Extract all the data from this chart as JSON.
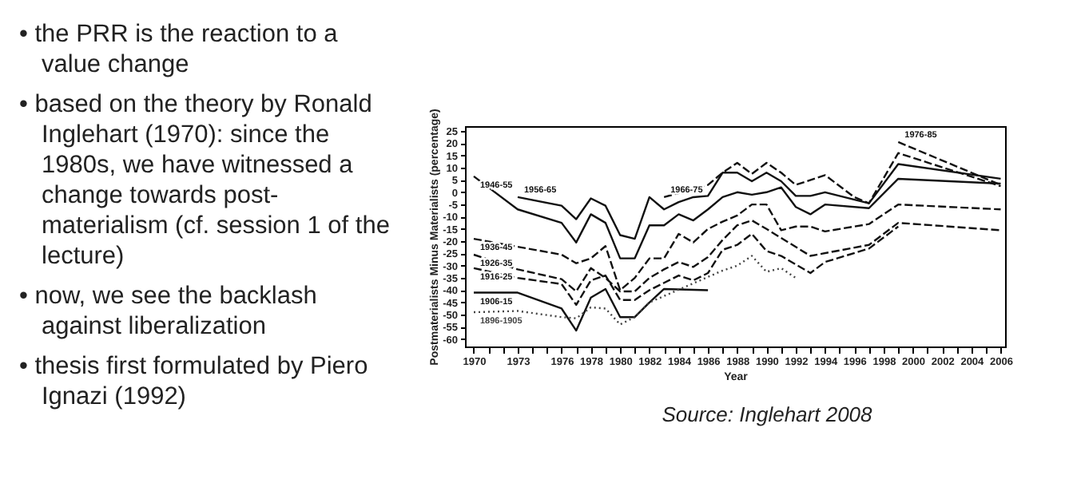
{
  "chart_data": {
    "type": "line",
    "xlabel": "Year",
    "ylabel": "Postmaterialists Minus Materialists (percentage)",
    "grid": false,
    "xlim": [
      1969.4,
      2006.3
    ],
    "ylim": [
      -63,
      27
    ],
    "xticks": [
      1970,
      {
        "value": 1971,
        "label": null
      },
      {
        "value": 1972,
        "label": null
      },
      1973,
      {
        "value": 1974,
        "label": null
      },
      {
        "value": 1975,
        "label": null
      },
      1976,
      {
        "value": 1977,
        "label": null
      },
      1978,
      {
        "value": 1979,
        "label": null
      },
      1980,
      {
        "value": 1981,
        "label": null
      },
      1982,
      {
        "value": 1983,
        "label": null
      },
      1984,
      {
        "value": 1985,
        "label": null
      },
      1986,
      {
        "value": 1987,
        "label": null
      },
      1988,
      {
        "value": 1989,
        "label": null
      },
      1990,
      {
        "value": 1991,
        "label": null
      },
      1992,
      {
        "value": 1993,
        "label": null
      },
      1994,
      {
        "value": 1995,
        "label": null
      },
      1996,
      {
        "value": 1997,
        "label": null
      },
      1998,
      {
        "value": 1999,
        "label": null
      },
      2000,
      {
        "value": 2001,
        "label": null
      },
      2002,
      {
        "value": 2003,
        "label": null
      },
      2004,
      {
        "value": 2005,
        "label": null
      },
      2006
    ],
    "yticks": [
      -60,
      -55,
      -50,
      -45,
      -40,
      -35,
      -30,
      -25,
      -20,
      -15,
      -10,
      -5,
      0,
      5,
      10,
      15,
      20,
      25
    ],
    "series": [
      {
        "name": "1946-55",
        "color": "#111111",
        "line_style": "solid",
        "x": [
          1970,
          1973,
          1976,
          1977,
          1978,
          1979,
          1980,
          1981,
          1982,
          1983,
          1984,
          1985,
          1986,
          1987,
          1988,
          1989,
          1990,
          1991,
          1992,
          1993,
          1994,
          1997,
          1999,
          2006
        ],
        "values": [
          6.5,
          -7,
          -12.5,
          -20.5,
          -9,
          -12.5,
          -27,
          -27,
          -13.5,
          -13.5,
          -9,
          -11.5,
          -7,
          -2,
          0,
          -1,
          0,
          2,
          -6,
          -9,
          -5,
          -6.5,
          5.5,
          3.5
        ]
      },
      {
        "name": "1956-65",
        "color": "#111111",
        "line_style": "solid",
        "x": [
          1973,
          1976,
          1977,
          1978,
          1979,
          1980,
          1981,
          1982,
          1983,
          1984,
          1985,
          1986,
          1987,
          1988,
          1989,
          1990,
          1991,
          1992,
          1993,
          1994,
          1997,
          1999,
          2006
        ],
        "values": [
          -2,
          -5.5,
          -11,
          -2.5,
          -5.5,
          -17.5,
          -19,
          -2,
          -7,
          -4,
          -2,
          -1.5,
          8,
          8,
          4.5,
          8,
          4.5,
          -1.5,
          -1.5,
          0,
          -4.5,
          11.5,
          5.5
        ]
      },
      {
        "name": "1966-75",
        "color": "#111111",
        "line_style": "dashed",
        "x": [
          1983,
          1986,
          1987,
          1988,
          1989,
          1990,
          1991,
          1992,
          1994,
          1996,
          1997,
          1999,
          2006
        ],
        "values": [
          -2,
          3,
          8,
          12,
          7.5,
          12,
          8,
          3,
          7,
          -2,
          -4.5,
          16,
          2.5
        ]
      },
      {
        "name": "1976-85",
        "color": "#111111",
        "line_style": "dashed",
        "x": [
          1999,
          2006
        ],
        "values": [
          20.5,
          3
        ]
      },
      {
        "name": "1936-45",
        "color": "#111111",
        "line_style": "dashed",
        "x": [
          1970,
          1976,
          1977,
          1978,
          1979,
          1980,
          1981,
          1982,
          1983,
          1984,
          1985,
          1986,
          1987,
          1988,
          1989,
          1990,
          1991,
          1992,
          1993,
          1994,
          1997,
          1999,
          2006
        ],
        "values": [
          -19,
          -25.5,
          -29,
          -27,
          -22,
          -40,
          -35,
          -27,
          -27,
          -17,
          -20.5,
          -15,
          -12,
          -9.5,
          -5,
          -5,
          -15.5,
          -14,
          -14,
          -16,
          -13,
          -5,
          -7
        ]
      },
      {
        "name": "1926-35",
        "color": "#111111",
        "line_style": "dashed",
        "x": [
          1970,
          1973,
          1976,
          1977,
          1978,
          1979,
          1980,
          1981,
          1982,
          1983,
          1984,
          1985,
          1986,
          1987,
          1988,
          1989,
          1990,
          1993,
          1997,
          1999,
          2006
        ],
        "values": [
          -25.5,
          -31.5,
          -35.5,
          -40.5,
          -31,
          -35,
          -40.5,
          -40.5,
          -35,
          -31.5,
          -28.5,
          -30.5,
          -26.5,
          -19.5,
          -13.5,
          -11.5,
          -15,
          -26,
          -21.5,
          -12.5,
          -15.5
        ]
      },
      {
        "name": "1916-25",
        "color": "#111111",
        "line_style": "dashed",
        "x": [
          1970,
          1973,
          1976,
          1977,
          1978,
          1979,
          1980,
          1981,
          1982,
          1983,
          1984,
          1985,
          1986,
          1987,
          1988,
          1989,
          1990,
          1991,
          1993,
          1994,
          1997,
          1999
        ],
        "values": [
          -31,
          -35,
          -37.5,
          -46,
          -36,
          -34,
          -44,
          -44,
          -40,
          -37,
          -34,
          -36,
          -33,
          -23.5,
          -21.5,
          -17,
          -24,
          -26,
          -33,
          -28.5,
          -23,
          -14
        ]
      },
      {
        "name": "1906-15",
        "color": "#111111",
        "line_style": "solid",
        "x": [
          1970,
          1973,
          1976,
          1977,
          1978,
          1979,
          1980,
          1981,
          1982,
          1983,
          1986
        ],
        "values": [
          -41,
          -41,
          -47.5,
          -56.5,
          -43,
          -39.5,
          -51,
          -51,
          -45,
          -39.5,
          -40
        ]
      },
      {
        "name": "1896-1905",
        "color": "#444444",
        "line_style": "dotted",
        "x": [
          1970,
          1973,
          1976,
          1977,
          1978,
          1979,
          1980,
          1981,
          1982,
          1987,
          1988,
          1989,
          1990,
          1991,
          1992
        ],
        "values": [
          -49,
          -48.5,
          -51,
          -51.5,
          -47,
          -47.5,
          -54,
          -51,
          -45,
          -32,
          -30,
          -26,
          -32.5,
          -31,
          -35
        ]
      }
    ],
    "annotations": [
      "• the PRR is the reaction to a value change",
      "• based on the theory by Ronald Inglehart (1970): since the 1980s, we have witnessed a change towards post-materialism (cf. session 1 of the lecture)",
      "• now, we see the backlash against liberalization",
      "• thesis first formulated by Piero Ignazi (1992)",
      "Source: Inglehart 2008"
    ]
  }
}
